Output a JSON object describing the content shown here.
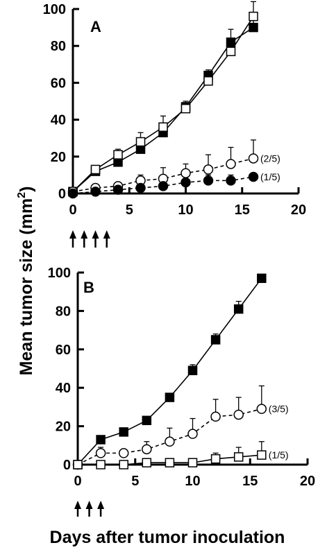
{
  "ylabel_main": "Mean tumor size (mm",
  "ylabel_sup": "2",
  "ylabel_close": ")",
  "xlabel": "Days after tumor inoculation",
  "chart_data": [
    {
      "type": "line",
      "panel": "A",
      "xlim": [
        0,
        20
      ],
      "ylim": [
        0,
        100
      ],
      "x_ticks": [
        0,
        5,
        10,
        15,
        20
      ],
      "y_ticks": [
        0,
        20,
        40,
        60,
        80,
        100
      ],
      "arrows_at_days": [
        0,
        1,
        2,
        3
      ],
      "series": [
        {
          "marker": "filled-square",
          "line": "solid",
          "points": [
            {
              "x": 0,
              "y": 1
            },
            {
              "x": 2,
              "y": 12
            },
            {
              "x": 4,
              "y": 17
            },
            {
              "x": 6,
              "y": 24
            },
            {
              "x": 8,
              "y": 33
            },
            {
              "x": 10,
              "y": 47
            },
            {
              "x": 12,
              "y": 64
            },
            {
              "x": 14,
              "y": 82
            },
            {
              "x": 16,
              "y": 90
            }
          ],
          "errors": [
            0,
            1,
            1,
            2,
            3,
            3,
            3,
            7,
            8
          ]
        },
        {
          "marker": "open-square",
          "line": "solid",
          "points": [
            {
              "x": 0,
              "y": 1
            },
            {
              "x": 2,
              "y": 13
            },
            {
              "x": 4,
              "y": 21
            },
            {
              "x": 6,
              "y": 28
            },
            {
              "x": 8,
              "y": 36
            },
            {
              "x": 10,
              "y": 46
            },
            {
              "x": 12,
              "y": 61
            },
            {
              "x": 14,
              "y": 77
            },
            {
              "x": 16,
              "y": 96
            }
          ],
          "errors": [
            0,
            1,
            3,
            5,
            6,
            2,
            3,
            7,
            8
          ]
        },
        {
          "marker": "open-circle",
          "line": "dashed",
          "points": [
            {
              "x": 0,
              "y": 1
            },
            {
              "x": 2,
              "y": 3
            },
            {
              "x": 4,
              "y": 4
            },
            {
              "x": 6,
              "y": 7
            },
            {
              "x": 8,
              "y": 8
            },
            {
              "x": 10,
              "y": 11
            },
            {
              "x": 12,
              "y": 13
            },
            {
              "x": 14,
              "y": 16
            },
            {
              "x": 16,
              "y": 19
            }
          ],
          "errors": [
            0,
            1,
            1,
            3,
            6,
            5,
            8,
            9,
            10
          ],
          "annotation": "(2/5)"
        },
        {
          "marker": "filled-circle",
          "line": "dashed",
          "points": [
            {
              "x": 0,
              "y": 0
            },
            {
              "x": 2,
              "y": 1
            },
            {
              "x": 4,
              "y": 2
            },
            {
              "x": 6,
              "y": 3
            },
            {
              "x": 8,
              "y": 4
            },
            {
              "x": 10,
              "y": 6
            },
            {
              "x": 12,
              "y": 7
            },
            {
              "x": 14,
              "y": 7
            },
            {
              "x": 16,
              "y": 9
            }
          ],
          "errors": [
            0,
            0,
            1,
            1,
            3,
            3,
            3,
            3,
            2
          ],
          "annotation": "(1/5)"
        }
      ]
    },
    {
      "type": "line",
      "panel": "B",
      "xlim": [
        0,
        20
      ],
      "ylim": [
        0,
        100
      ],
      "x_ticks": [
        0,
        5,
        10,
        15,
        20
      ],
      "y_ticks": [
        0,
        20,
        40,
        60,
        80,
        100
      ],
      "arrows_at_days": [
        0,
        1,
        2
      ],
      "series": [
        {
          "marker": "filled-square",
          "line": "solid",
          "points": [
            {
              "x": 0,
              "y": 0
            },
            {
              "x": 2,
              "y": 13
            },
            {
              "x": 4,
              "y": 17
            },
            {
              "x": 6,
              "y": 23
            },
            {
              "x": 8,
              "y": 35
            },
            {
              "x": 10,
              "y": 49
            },
            {
              "x": 12,
              "y": 65
            },
            {
              "x": 14,
              "y": 81
            },
            {
              "x": 16,
              "y": 97
            }
          ],
          "errors": [
            0,
            0,
            1,
            1,
            2,
            3,
            3,
            4,
            0
          ]
        },
        {
          "marker": "open-circle",
          "line": "dashed",
          "points": [
            {
              "x": 0,
              "y": 0
            },
            {
              "x": 2,
              "y": 6
            },
            {
              "x": 4,
              "y": 6
            },
            {
              "x": 6,
              "y": 8
            },
            {
              "x": 8,
              "y": 12
            },
            {
              "x": 10,
              "y": 16
            },
            {
              "x": 12,
              "y": 25
            },
            {
              "x": 14,
              "y": 26
            },
            {
              "x": 16,
              "y": 29
            }
          ],
          "errors": [
            0,
            3,
            1,
            4,
            7,
            8,
            9,
            9,
            12
          ],
          "annotation": "(3/5)"
        },
        {
          "marker": "open-square",
          "line": "solid",
          "points": [
            {
              "x": 0,
              "y": 0
            },
            {
              "x": 2,
              "y": 0
            },
            {
              "x": 4,
              "y": 0
            },
            {
              "x": 6,
              "y": 1
            },
            {
              "x": 8,
              "y": 1
            },
            {
              "x": 10,
              "y": 1
            },
            {
              "x": 12,
              "y": 3
            },
            {
              "x": 14,
              "y": 4
            },
            {
              "x": 16,
              "y": 5
            }
          ],
          "errors": [
            0,
            0,
            0,
            1,
            1,
            1,
            3,
            5,
            7
          ],
          "annotation": "(1/5)"
        }
      ]
    }
  ]
}
